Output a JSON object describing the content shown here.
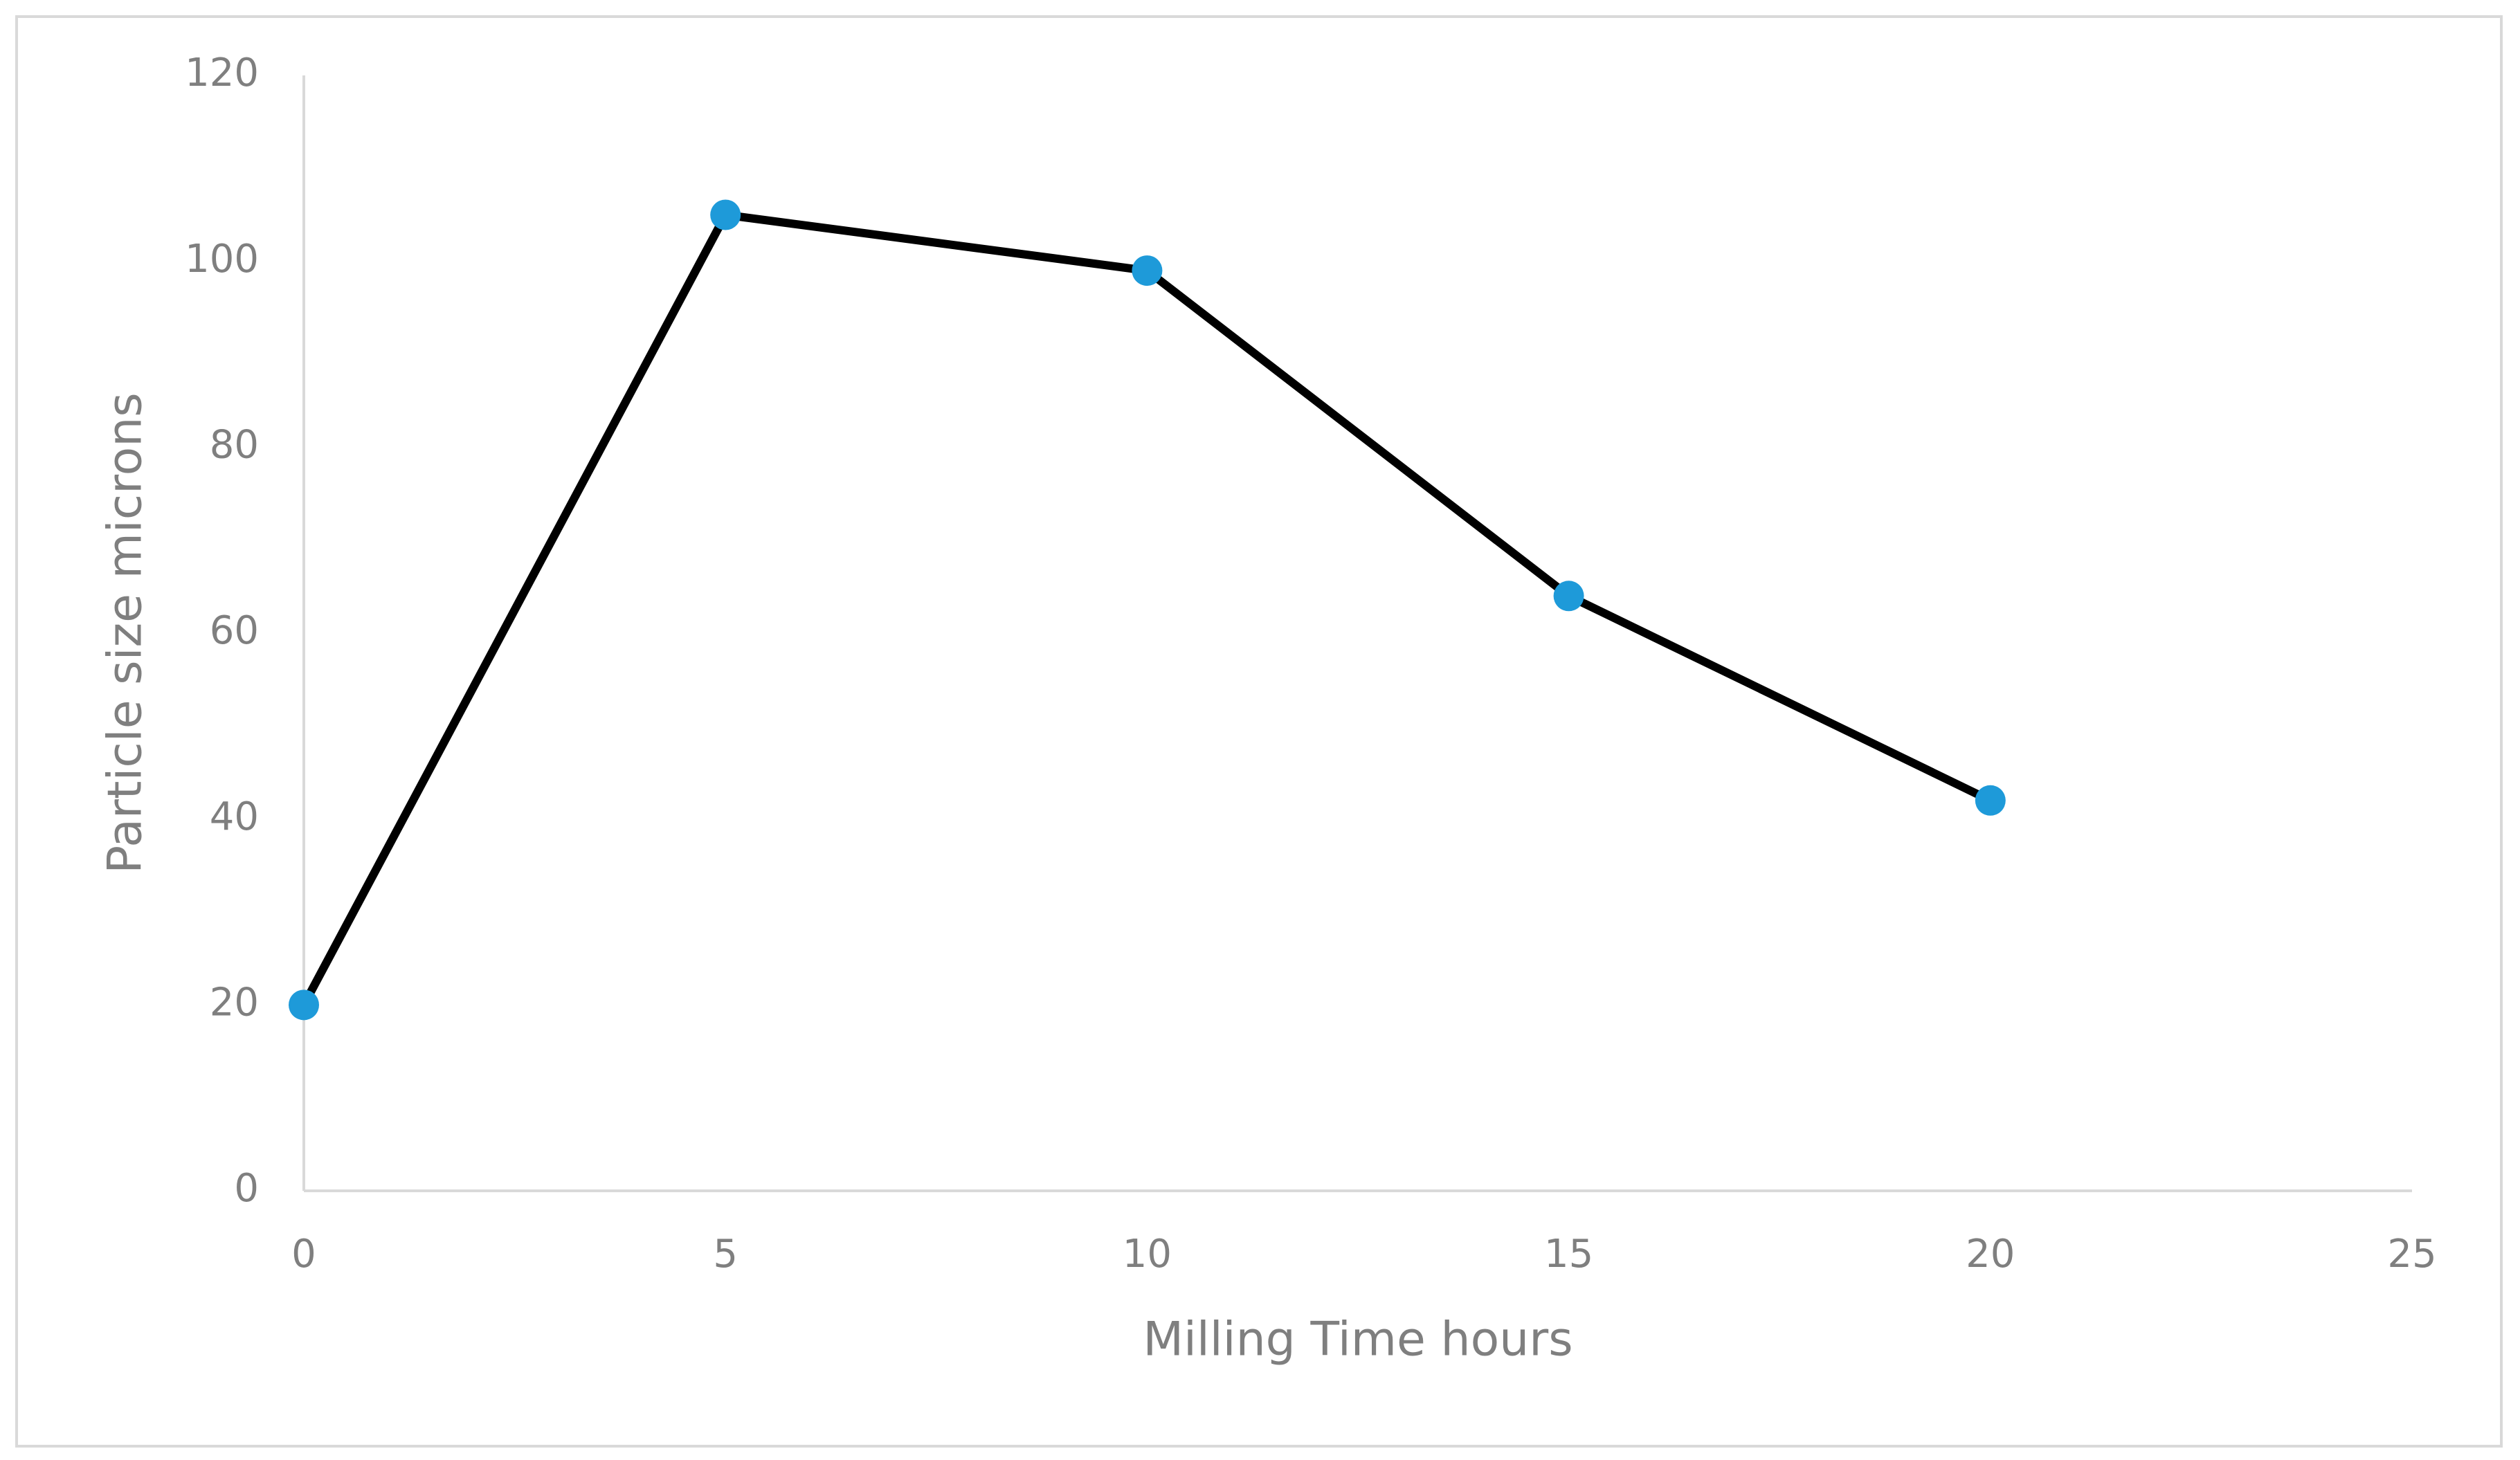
{
  "chart_data": {
    "type": "line",
    "x_label": "Milling Time hours",
    "y_label": "Particle size microns",
    "x": [
      0,
      5,
      10,
      15,
      20
    ],
    "values": [
      20,
      105,
      99,
      64,
      42
    ],
    "line_color": "#000000",
    "marker_color": "#1e9ad9",
    "xlim": [
      0,
      25
    ],
    "xticks": [
      0,
      5,
      10,
      15,
      20,
      25
    ],
    "ylim": [
      0,
      120
    ],
    "yticks": [
      0,
      20,
      40,
      60,
      80,
      100,
      120
    ],
    "grid": false
  }
}
